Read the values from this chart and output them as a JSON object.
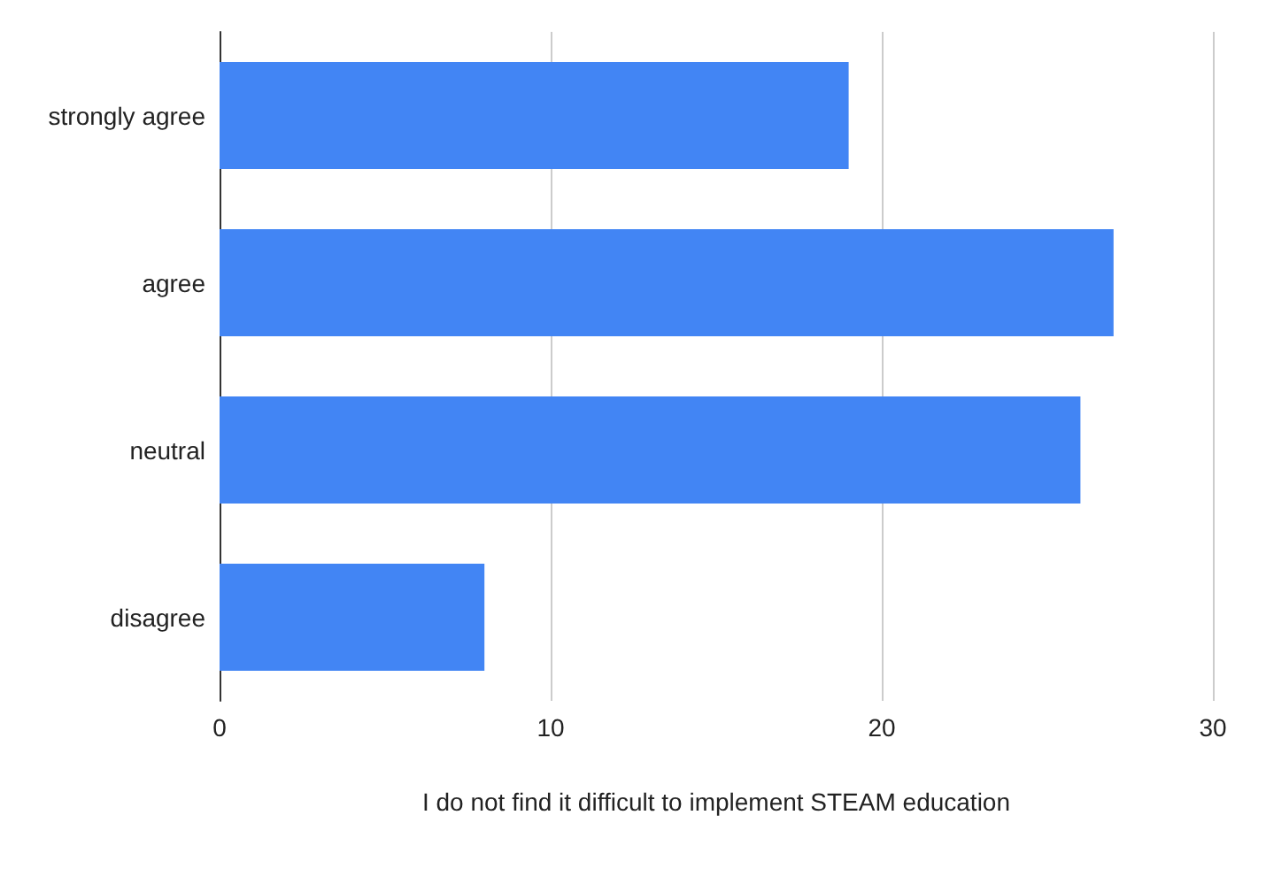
{
  "chart_data": {
    "type": "bar",
    "orientation": "horizontal",
    "xlabel": "I do not find it difficult to implement STEAM education",
    "categories": [
      "strongly agree",
      "agree",
      "neutral",
      "disagree"
    ],
    "values": [
      19,
      27,
      26,
      8
    ],
    "color": "#4285f4",
    "xlim": [
      0,
      30
    ],
    "xticks": [
      0,
      10,
      20,
      30
    ],
    "grid": "x"
  }
}
